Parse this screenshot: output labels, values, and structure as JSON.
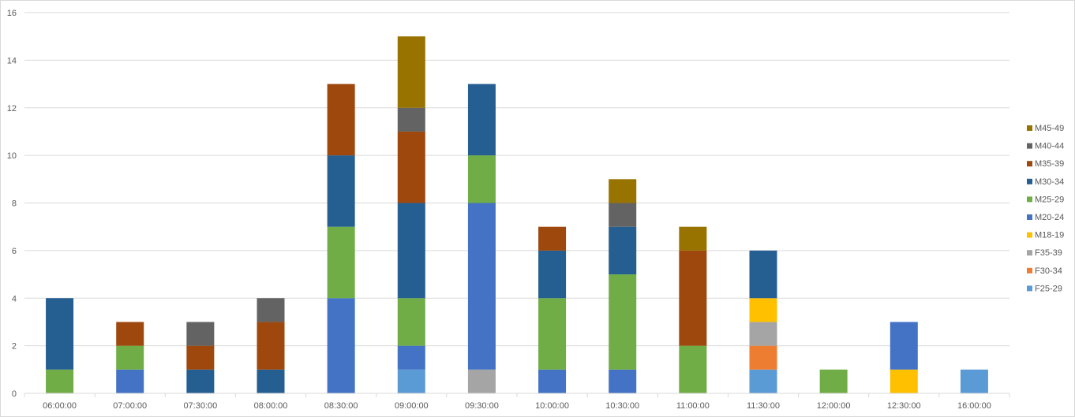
{
  "chart_data": {
    "type": "bar",
    "stacked": true,
    "title": "",
    "xlabel": "",
    "ylabel": "",
    "ylim": [
      0,
      16
    ],
    "yticks": [
      0,
      2,
      4,
      6,
      8,
      10,
      12,
      14,
      16
    ],
    "grid": true,
    "legend_position": "right",
    "categories": [
      "06:00:00",
      "07:00:00",
      "07:30:00",
      "08:00:00",
      "08:30:00",
      "09:00:00",
      "09:30:00",
      "10:00:00",
      "10:30:00",
      "11:00:00",
      "11:30:00",
      "12:00:00",
      "12:30:00",
      "16:00:00"
    ],
    "series": [
      {
        "name": "F25-29",
        "color": "#5b9bd5",
        "values": [
          0,
          0,
          0,
          0,
          0,
          1,
          0,
          0,
          0,
          0,
          1,
          0,
          0,
          1
        ]
      },
      {
        "name": "F30-34",
        "color": "#ed7d31",
        "values": [
          0,
          0,
          0,
          0,
          0,
          0,
          0,
          0,
          0,
          0,
          1,
          0,
          0,
          0
        ]
      },
      {
        "name": "F35-39",
        "color": "#a5a5a5",
        "values": [
          0,
          0,
          0,
          0,
          0,
          0,
          1,
          0,
          0,
          0,
          1,
          0,
          0,
          0
        ]
      },
      {
        "name": "M18-19",
        "color": "#ffc000",
        "values": [
          0,
          0,
          0,
          0,
          0,
          0,
          0,
          0,
          0,
          0,
          1,
          0,
          1,
          0
        ]
      },
      {
        "name": "M20-24",
        "color": "#4472c4",
        "values": [
          0,
          1,
          0,
          0,
          4,
          1,
          7,
          1,
          1,
          0,
          0,
          0,
          2,
          0
        ]
      },
      {
        "name": "M25-29",
        "color": "#70ad47",
        "values": [
          1,
          1,
          0,
          0,
          3,
          2,
          2,
          3,
          4,
          2,
          0,
          1,
          0,
          0
        ]
      },
      {
        "name": "M30-34",
        "color": "#255e91",
        "values": [
          3,
          0,
          1,
          1,
          3,
          4,
          3,
          2,
          2,
          0,
          2,
          0,
          0,
          0
        ]
      },
      {
        "name": "M35-39",
        "color": "#9e480e",
        "values": [
          0,
          1,
          1,
          2,
          3,
          3,
          0,
          1,
          0,
          4,
          0,
          0,
          0,
          0
        ]
      },
      {
        "name": "M40-44",
        "color": "#636363",
        "values": [
          0,
          0,
          1,
          1,
          0,
          1,
          0,
          0,
          1,
          0,
          0,
          0,
          0,
          0
        ]
      },
      {
        "name": "M45-49",
        "color": "#997300",
        "values": [
          0,
          0,
          0,
          0,
          0,
          3,
          0,
          0,
          1,
          1,
          0,
          0,
          0,
          0
        ]
      }
    ]
  }
}
